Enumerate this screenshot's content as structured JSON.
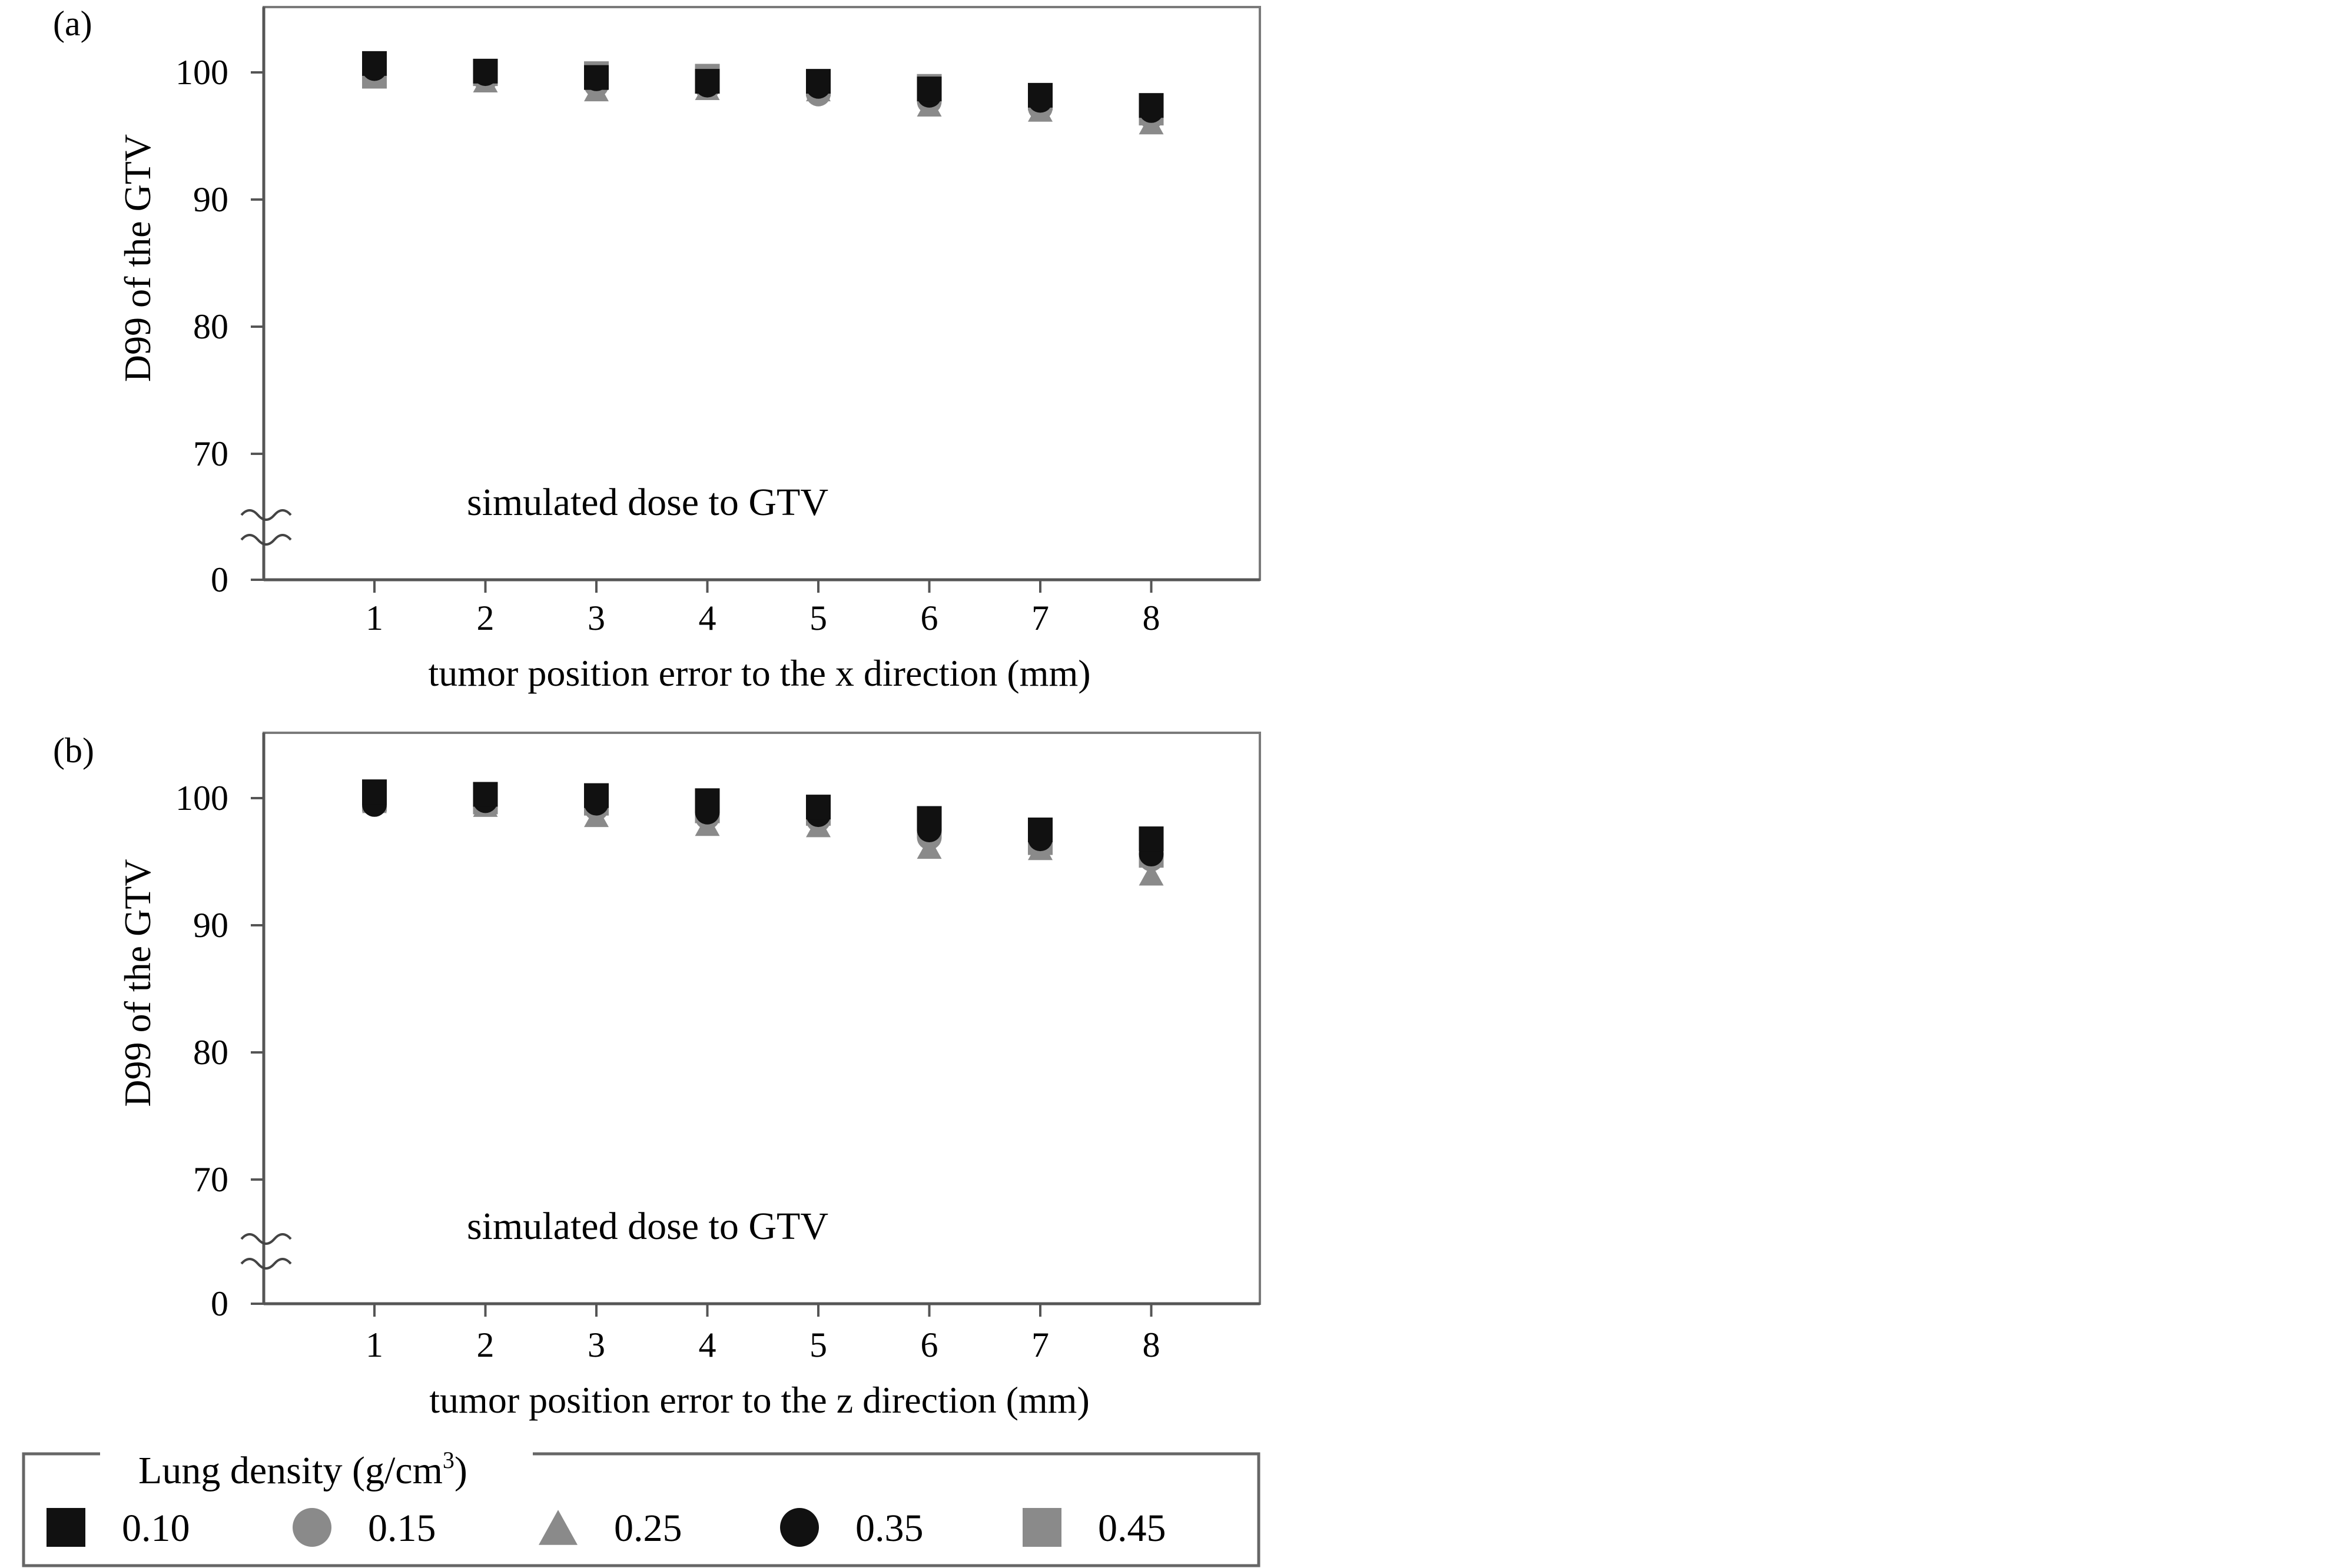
{
  "legend": {
    "title": "Lung density (g/cm",
    "title_sup": "3",
    "title_close": ")",
    "entries": [
      {
        "label": "0.10",
        "marker": "square",
        "color": "#111111"
      },
      {
        "label": "0.15",
        "marker": "circle",
        "color": "#8a8a8a"
      },
      {
        "label": "0.25",
        "marker": "triangle",
        "color": "#8a8a8a"
      },
      {
        "label": "0.35",
        "marker": "circle",
        "color": "#111111"
      },
      {
        "label": "0.45",
        "marker": "square",
        "color": "#8a8a8a"
      }
    ]
  },
  "chart_data": [
    {
      "type": "scatter",
      "panel_label": "(a)",
      "annotation": "simulated dose to GTV",
      "xlabel": "tumor position error to the x direction (mm)",
      "ylabel": "D99 of the GTV",
      "x": [
        1,
        2,
        3,
        4,
        5,
        6,
        7,
        8
      ],
      "yticks": [
        "0",
        "70",
        "80",
        "90",
        "100"
      ],
      "axis_break": "between 0 and 70",
      "ylim": [
        70,
        104.5
      ],
      "grid": false,
      "series": [
        {
          "name": "0.10",
          "values": [
            100.7,
            100.1,
            99.6,
            99.3,
            99.3,
            98.7,
            98.2,
            97.4
          ]
        },
        {
          "name": "0.15",
          "values": [
            100.0,
            99.5,
            99.0,
            98.8,
            98.3,
            97.7,
            97.2,
            96.5
          ]
        },
        {
          "name": "0.25",
          "values": [
            99.8,
            99.3,
            98.6,
            98.7,
            98.6,
            97.4,
            97.0,
            96.0
          ]
        },
        {
          "name": "0.35",
          "values": [
            100.3,
            99.9,
            99.5,
            99.0,
            98.9,
            98.2,
            97.8,
            97.0
          ]
        },
        {
          "name": "0.45",
          "values": [
            99.7,
            99.9,
            99.9,
            99.7,
            99.1,
            98.9,
            98.0,
            96.8
          ]
        }
      ]
    },
    {
      "type": "scatter",
      "panel_label": "(b)",
      "annotation": "simulated dose to GTV",
      "xlabel": "tumor position error to the z direction (mm)",
      "ylabel": "D99 of the GTV",
      "x": [
        1,
        2,
        3,
        4,
        5,
        6,
        7,
        8
      ],
      "yticks": [
        "0",
        "70",
        "80",
        "90",
        "100"
      ],
      "axis_break": "between 0 and 70",
      "ylim": [
        70,
        104.5
      ],
      "grid": false,
      "series": [
        {
          "name": "0.10",
          "values": [
            100.5,
            100.3,
            100.2,
            99.8,
            99.3,
            98.4,
            97.5,
            96.8
          ]
        },
        {
          "name": "0.15",
          "values": [
            99.8,
            99.6,
            99.2,
            98.5,
            98.3,
            96.9,
            96.3,
            95.2
          ]
        },
        {
          "name": "0.25",
          "values": [
            99.7,
            99.4,
            98.6,
            97.9,
            97.8,
            96.1,
            96.0,
            94.0
          ]
        },
        {
          "name": "0.35",
          "values": [
            99.5,
            99.8,
            99.6,
            98.9,
            98.7,
            97.5,
            96.8,
            95.6
          ]
        },
        {
          "name": "0.45",
          "values": [
            99.9,
            99.7,
            99.6,
            99.0,
            98.8,
            97.8,
            96.5,
            95.5
          ]
        }
      ]
    }
  ]
}
